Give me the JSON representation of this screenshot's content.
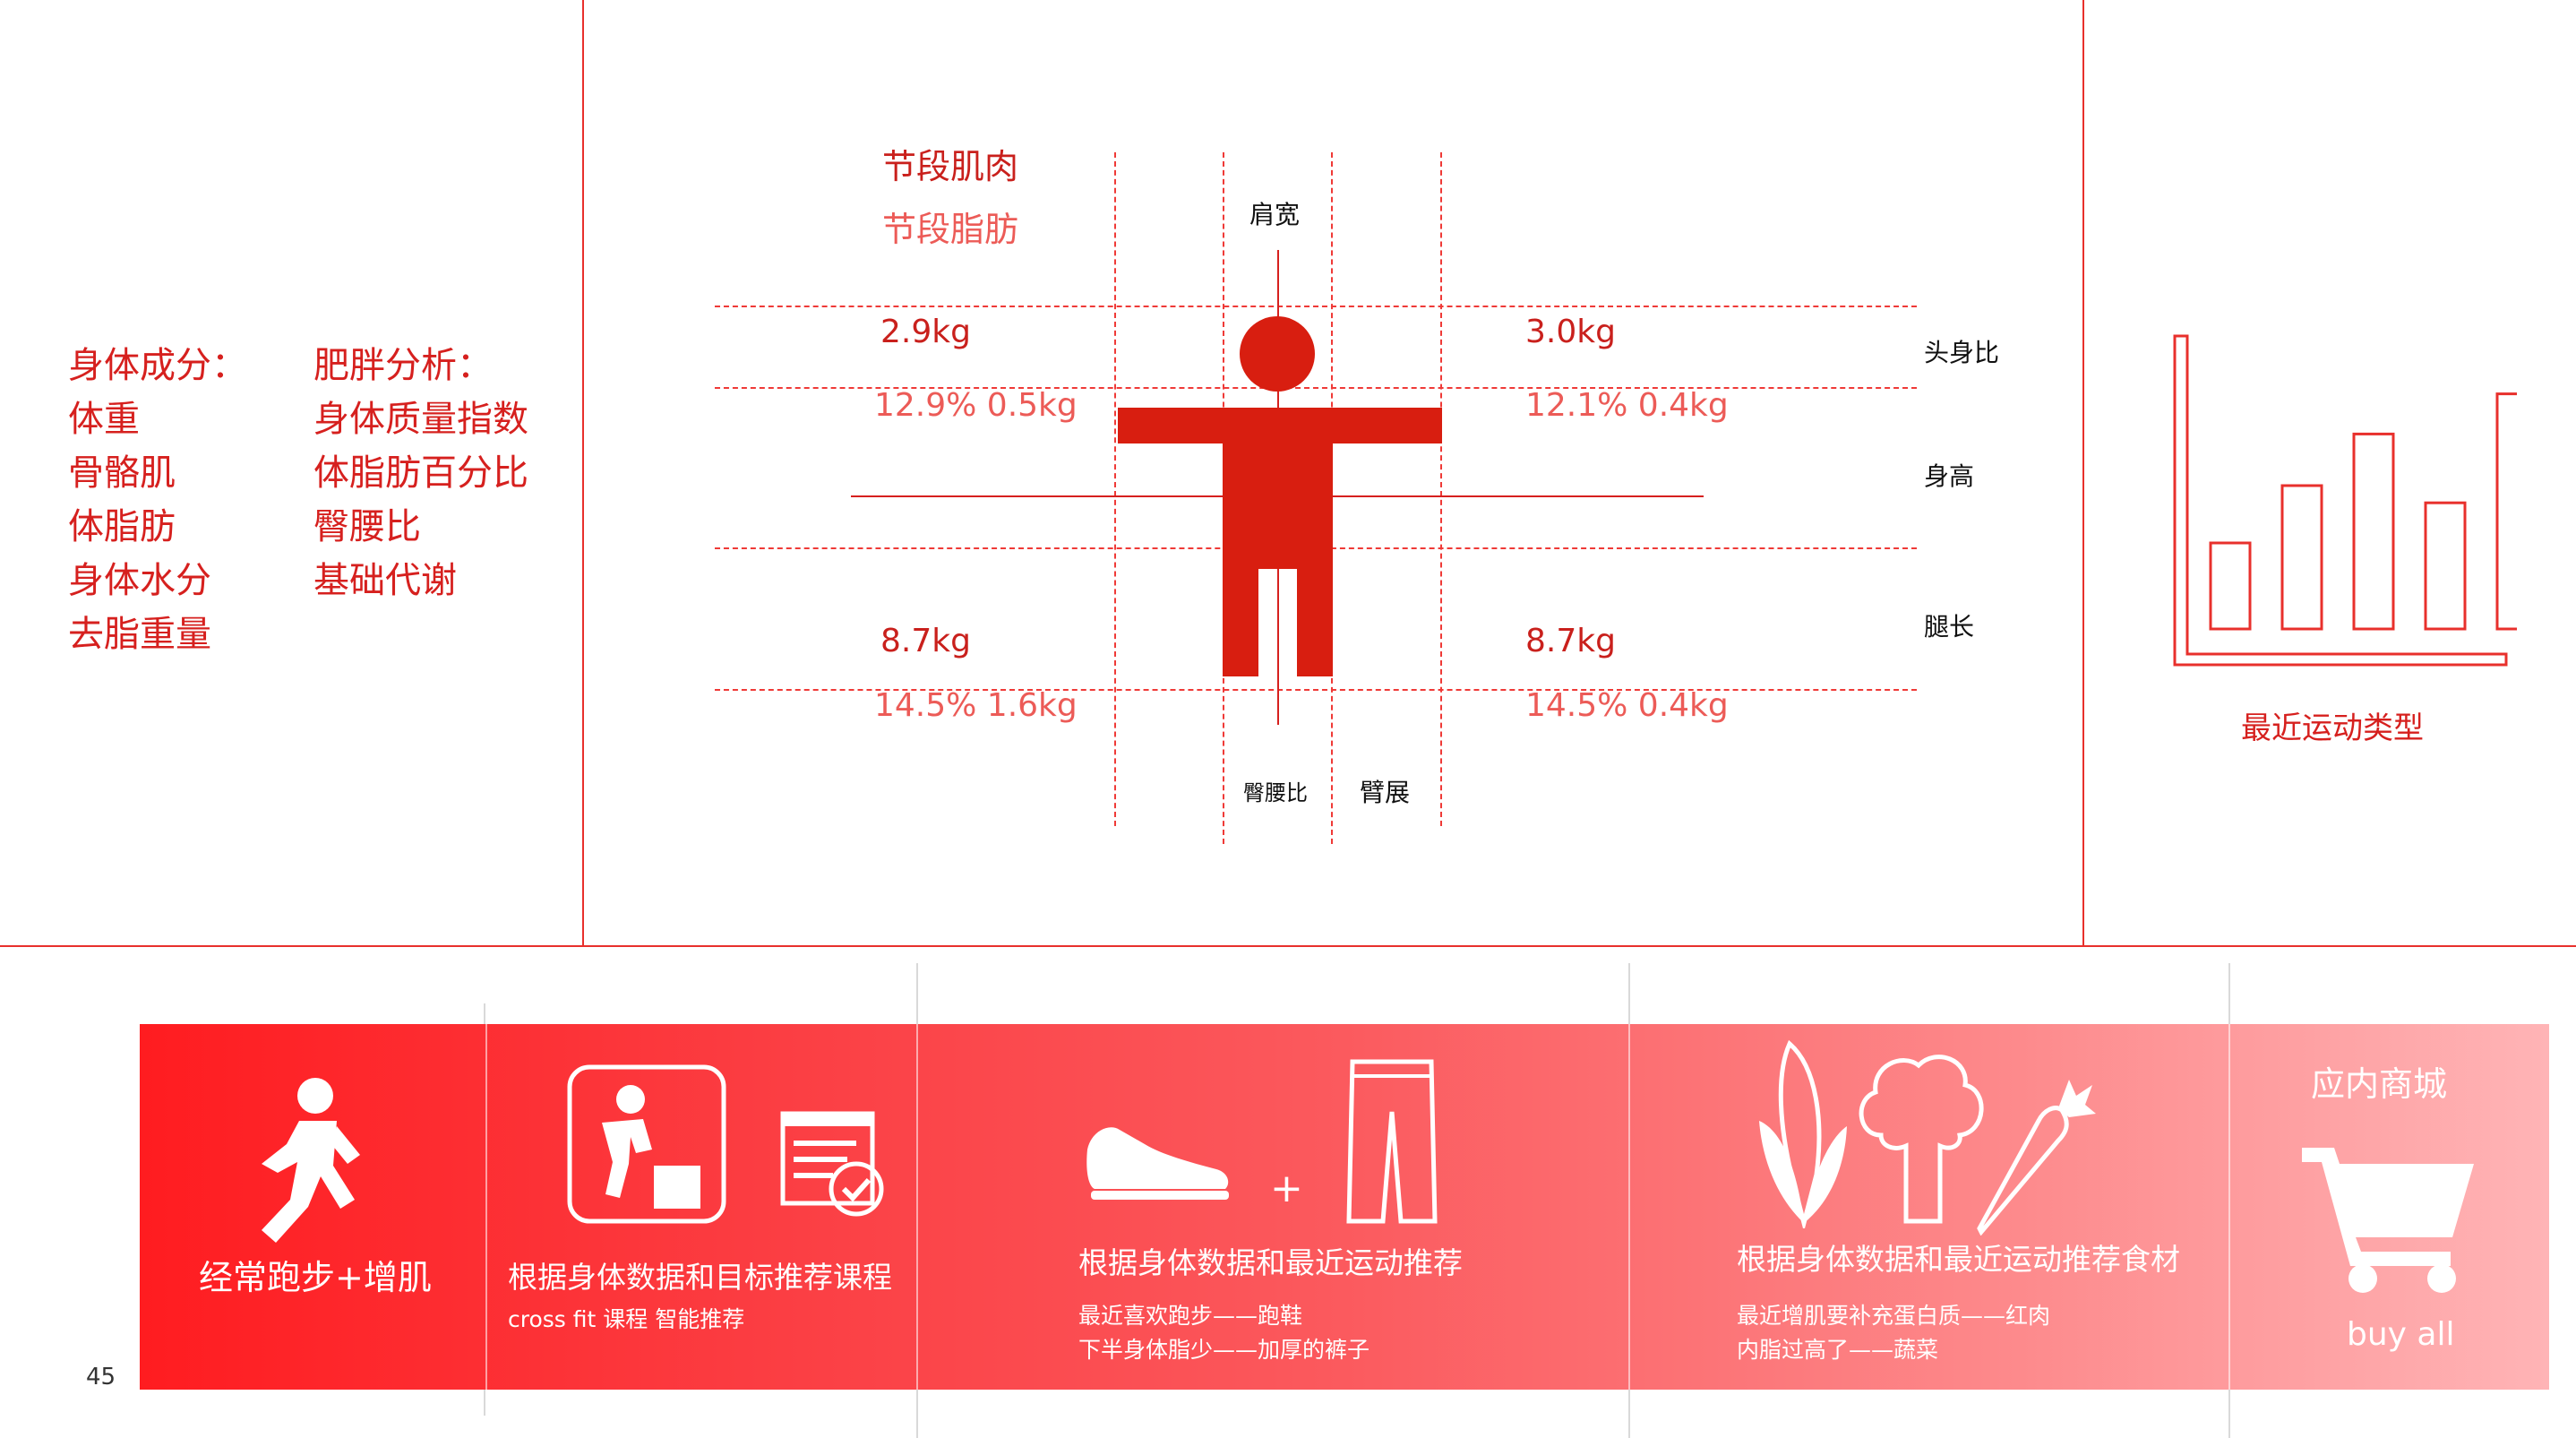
{
  "page": {
    "page_number": "45"
  },
  "left_panel": {
    "col1": [
      "身体成分：",
      "体重",
      "骨骼肌",
      "体脂肪",
      "身体水分",
      "去脂重量"
    ],
    "col2": [
      "肥胖分析：",
      "身体质量指数",
      "体脂肪百分比",
      "臀腰比",
      "基础代谢"
    ]
  },
  "body_diagram": {
    "legend_muscle": "节段肌肉",
    "legend_fat": "节段脂肪",
    "shoulder_label": "肩宽",
    "head_body_ratio": "头身比",
    "height_label": "身高",
    "leg_length": "腿长",
    "waist_hip_ratio": "臀腰比",
    "arm_span": "臂展",
    "upper_left_muscle": "2.9kg",
    "upper_left_fat": "12.9% 0.5kg",
    "upper_right_muscle": "3.0kg",
    "upper_right_fat": "12.1% 0.4kg",
    "lower_left_muscle": "8.7kg",
    "lower_left_fat": "14.5% 1.6kg",
    "lower_right_muscle": "8.7kg",
    "lower_right_fat": "14.5% 0.4kg"
  },
  "right_panel": {
    "label": "最近运动类型",
    "bars": [
      0.3,
      0.5,
      0.68,
      0.44,
      0.82
    ]
  },
  "banner": {
    "run": {
      "label": "经常跑步+增肌"
    },
    "course": {
      "title": "根据身体数据和目标推荐课程",
      "sub": "cross fit 课程 智能推荐"
    },
    "gear": {
      "plus": "+",
      "title": "根据身体数据和最近运动推荐",
      "line1": "最近喜欢跑步——跑鞋",
      "line2": "下半身体脂少——加厚的裤子"
    },
    "food": {
      "title": "根据身体数据和最近运动推荐食材",
      "line1": "最近增肌要补充蛋白质——红肉",
      "line2": "内脂过高了——蔬菜"
    },
    "shop": {
      "title": "应内商城",
      "button": "buy all"
    }
  },
  "colors": {
    "accent": "#e8302c",
    "dark_red": "#c9201c",
    "soft_red": "#ec5b57"
  }
}
